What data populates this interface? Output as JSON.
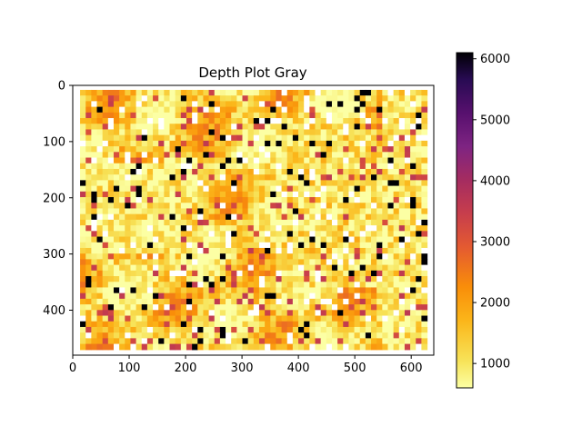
{
  "chart_data": {
    "type": "heatmap",
    "title": "Depth Plot Gray",
    "xlabel": "",
    "ylabel": "",
    "image_extent": {
      "x": [
        0,
        640
      ],
      "y": [
        0,
        480
      ]
    },
    "x_ticks": [
      0,
      100,
      200,
      300,
      400,
      500,
      600
    ],
    "y_ticks": [
      0,
      100,
      200,
      300,
      400
    ],
    "x_tick_labels": [
      "0",
      "100",
      "200",
      "300",
      "400",
      "500",
      "600"
    ],
    "y_tick_labels": [
      "0",
      "100",
      "200",
      "300",
      "400"
    ],
    "y_axis_inverted": true,
    "colormap": "inferno_r",
    "colorbar": {
      "range": [
        600,
        6100
      ],
      "ticks": [
        1000,
        2000,
        3000,
        4000,
        5000,
        6000
      ],
      "tick_labels": [
        "1000",
        "2000",
        "3000",
        "4000",
        "5000",
        "6000"
      ]
    },
    "missing_value_color": "#ffffff",
    "grid": false
  }
}
